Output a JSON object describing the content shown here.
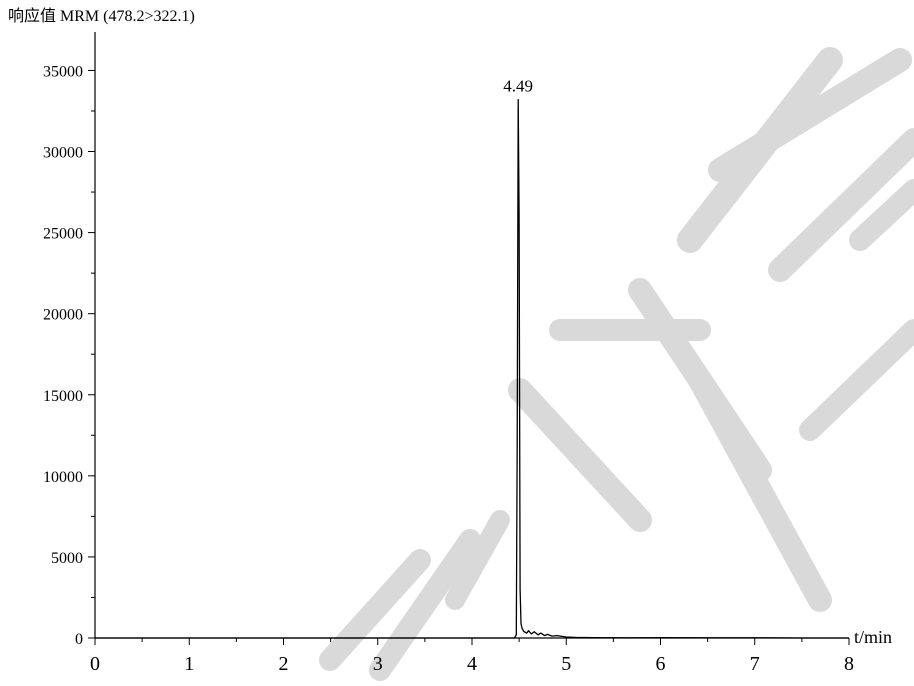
{
  "chart_data": {
    "type": "line",
    "title": "响应值 MRM (478.2>322.1)",
    "xlabel": "t/min",
    "ylabel": "",
    "xlim": [
      0,
      8
    ],
    "ylim": [
      0,
      37000
    ],
    "x_ticks": [
      0,
      1,
      2,
      3,
      4,
      5,
      6,
      7,
      8
    ],
    "y_ticks": [
      0,
      5000,
      10000,
      15000,
      20000,
      25000,
      30000,
      35000
    ],
    "grid": false,
    "legend": "none",
    "annotations": [
      {
        "text": "4.49",
        "x": 4.49,
        "y": 33200
      }
    ],
    "series": [
      {
        "color": "#000000",
        "x": [
          0.0,
          1.0,
          2.0,
          3.0,
          4.0,
          4.45,
          4.47,
          4.48,
          4.49,
          4.5,
          4.51,
          4.52,
          4.53,
          4.55,
          4.58,
          4.6,
          4.63,
          4.66,
          4.7,
          4.73,
          4.77,
          4.8,
          4.85,
          4.9,
          5.0,
          5.1,
          5.3,
          5.6,
          6.0,
          6.5,
          7.0,
          7.5,
          8.0
        ],
        "y": [
          0,
          0,
          0,
          0,
          0,
          0,
          200,
          12000,
          33200,
          26000,
          3000,
          900,
          600,
          400,
          300,
          450,
          250,
          380,
          200,
          300,
          150,
          220,
          120,
          150,
          60,
          40,
          20,
          10,
          20,
          10,
          10,
          0,
          0
        ]
      }
    ]
  }
}
